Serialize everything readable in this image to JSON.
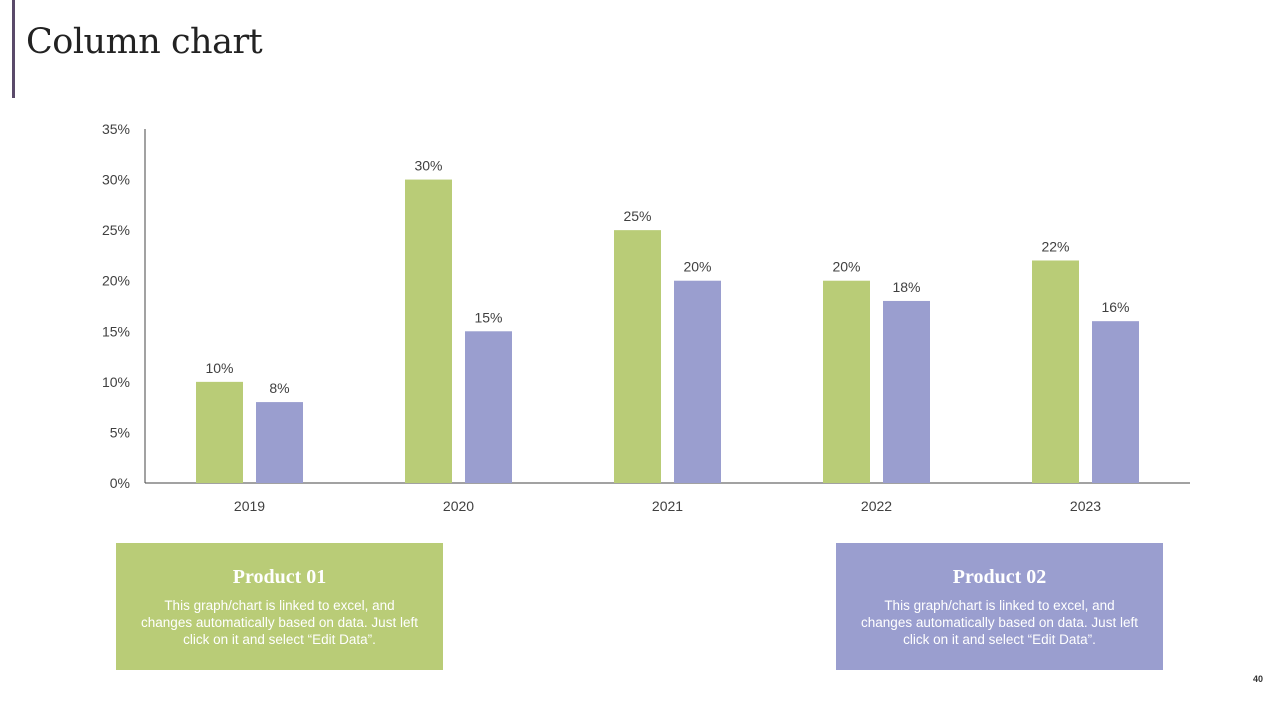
{
  "title": "Column chart",
  "page_number": "40",
  "colors": {
    "product01": "#b9cc77",
    "product02": "#9a9ecf",
    "accent": "#5a4a6a"
  },
  "chart_data": {
    "type": "bar",
    "categories": [
      "2019",
      "2020",
      "2021",
      "2022",
      "2023"
    ],
    "series": [
      {
        "name": "Product 01",
        "values": [
          10,
          30,
          25,
          20,
          22
        ]
      },
      {
        "name": "Product 02",
        "values": [
          8,
          15,
          20,
          18,
          16
        ]
      }
    ],
    "ylim": [
      0,
      35
    ],
    "yticks": [
      "0%",
      "5%",
      "10%",
      "15%",
      "20%",
      "25%",
      "30%",
      "35%"
    ],
    "value_suffix": "%",
    "grid": false
  },
  "legend_boxes": [
    {
      "title": "Product 01",
      "text": "This graph/chart is linked to excel, and changes automatically based on data. Just left click on it and select “Edit Data”."
    },
    {
      "title": "Product 02",
      "text": "This graph/chart is linked to excel, and changes automatically based on data. Just left click on it and select “Edit Data”."
    }
  ]
}
